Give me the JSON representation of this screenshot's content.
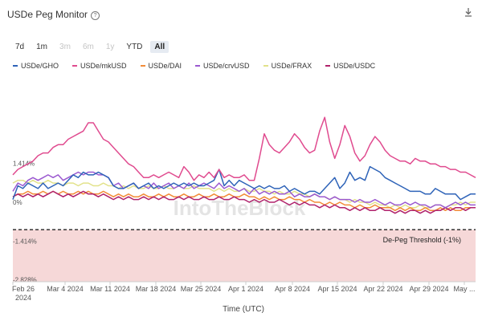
{
  "header": {
    "title": "USDe Peg Monitor",
    "info_icon": "info-icon",
    "download_icon": "download-icon"
  },
  "ranges": [
    {
      "label": "7d",
      "state": "enabled"
    },
    {
      "label": "1m",
      "state": "enabled"
    },
    {
      "label": "3m",
      "state": "disabled"
    },
    {
      "label": "6m",
      "state": "disabled"
    },
    {
      "label": "1y",
      "state": "disabled"
    },
    {
      "label": "YTD",
      "state": "enabled"
    },
    {
      "label": "All",
      "state": "active"
    }
  ],
  "watermark": "IntoTheBlock",
  "chart_data": {
    "type": "line",
    "title": "USDe Peg Monitor",
    "xlabel": "Time (UTC)",
    "ylabel": "",
    "ylim": [
      -2.9,
      4.6
    ],
    "y_ticks": [
      1.414,
      0,
      -1.414,
      -2.828
    ],
    "y_tick_labels": [
      "1.414%",
      "0%",
      "-1.414%",
      "-2.828%"
    ],
    "x_ticks": [
      "Feb 26 2024",
      "Mar 4 2024",
      "Mar 11 2024",
      "Mar 18 2024",
      "Mar 25 2024",
      "Apr 1 2024",
      "Apr 8 2024",
      "Apr 15 2024",
      "Apr 22 2024",
      "Apr 29 2024",
      "May ..."
    ],
    "threshold": {
      "value": -1.0,
      "label": "De-Peg Threshold (-1%)",
      "color": "#f6d8d8"
    },
    "series": [
      {
        "name": "USDe/GHO",
        "color": "#2e63b8",
        "values": [
          0.1,
          0.6,
          0.5,
          0.7,
          0.6,
          0.5,
          0.7,
          0.5,
          0.6,
          0.7,
          0.6,
          0.8,
          1.0,
          0.9,
          1.1,
          1.0,
          1.0,
          1.1,
          1.0,
          0.9,
          0.6,
          0.5,
          0.5,
          0.6,
          0.7,
          0.5,
          0.6,
          0.7,
          0.5,
          0.6,
          0.5,
          0.6,
          0.7,
          0.6,
          0.7,
          0.6,
          0.7,
          0.6,
          0.6,
          0.7,
          0.8,
          1.2,
          0.6,
          0.8,
          0.6,
          0.8,
          0.7,
          0.6,
          0.5,
          0.6,
          0.5,
          0.6,
          0.5,
          0.5,
          0.6,
          0.4,
          0.5,
          0.4,
          0.3,
          0.4,
          0.4,
          0.3,
          0.5,
          0.7,
          0.9,
          0.5,
          0.7,
          1.1,
          0.8,
          0.9,
          0.8,
          1.3,
          1.2,
          1.1,
          0.9,
          0.8,
          0.7,
          0.6,
          0.5,
          0.4,
          0.4,
          0.4,
          0.3,
          0.3,
          0.5,
          0.4,
          0.3,
          0.3,
          0.3,
          0.1,
          0.2,
          0.3,
          0.3
        ]
      },
      {
        "name": "USDe/mkUSD",
        "color": "#e04b8f",
        "values": [
          1.0,
          1.2,
          1.3,
          1.4,
          1.5,
          1.7,
          1.8,
          1.8,
          2.0,
          2.1,
          2.1,
          2.3,
          2.4,
          2.5,
          2.6,
          2.9,
          2.9,
          2.6,
          2.3,
          2.2,
          2.0,
          1.8,
          1.6,
          1.4,
          1.3,
          1.1,
          0.9,
          0.9,
          1.0,
          0.9,
          1.0,
          1.1,
          1.0,
          0.9,
          1.3,
          1.1,
          0.8,
          1.0,
          0.9,
          1.1,
          0.9,
          1.2,
          0.9,
          1.0,
          0.9,
          0.9,
          1.0,
          0.8,
          0.8,
          1.6,
          2.5,
          2.1,
          1.9,
          1.8,
          2.0,
          2.2,
          2.5,
          2.3,
          2.0,
          1.8,
          1.9,
          2.6,
          3.1,
          2.2,
          1.6,
          2.1,
          2.8,
          2.4,
          1.8,
          1.5,
          1.7,
          2.1,
          2.4,
          2.2,
          1.9,
          1.7,
          1.6,
          1.5,
          1.5,
          1.4,
          1.6,
          1.5,
          1.5,
          1.4,
          1.4,
          1.3,
          1.3,
          1.2,
          1.2,
          1.1,
          1.1,
          1.0,
          0.9
        ]
      },
      {
        "name": "USDe/DAI",
        "color": "#f28c38",
        "values": [
          0.2,
          0.3,
          0.3,
          0.4,
          0.3,
          0.3,
          0.4,
          0.3,
          0.4,
          0.3,
          0.4,
          0.3,
          0.3,
          0.4,
          0.3,
          0.4,
          0.3,
          0.3,
          0.4,
          0.3,
          0.2,
          0.3,
          0.2,
          0.3,
          0.2,
          0.2,
          0.3,
          0.2,
          0.2,
          0.3,
          0.2,
          0.3,
          0.2,
          0.2,
          0.3,
          0.2,
          0.2,
          0.3,
          0.2,
          0.2,
          0.3,
          0.2,
          0.2,
          0.3,
          0.2,
          0.2,
          0.3,
          0.2,
          0.2,
          0.1,
          0.2,
          0.1,
          0.2,
          0.1,
          0.1,
          0.2,
          0.1,
          0.1,
          0.0,
          0.1,
          0.0,
          0.0,
          -0.1,
          0.0,
          -0.1,
          0.0,
          -0.1,
          -0.1,
          -0.2,
          -0.1,
          -0.2,
          -0.2,
          -0.1,
          -0.2,
          -0.2,
          -0.2,
          -0.3,
          -0.2,
          -0.3,
          -0.2,
          -0.3,
          -0.3,
          -0.2,
          -0.3,
          -0.3,
          -0.2,
          -0.3,
          -0.2,
          -0.3,
          -0.3,
          -0.2,
          -0.2,
          -0.2
        ]
      },
      {
        "name": "USDe/crvUSD",
        "color": "#9b59d0",
        "values": [
          0.4,
          0.7,
          0.6,
          0.8,
          0.9,
          0.8,
          0.9,
          1.0,
          0.9,
          1.0,
          0.8,
          0.9,
          1.0,
          1.1,
          1.0,
          1.1,
          1.1,
          1.0,
          1.0,
          0.9,
          0.6,
          0.7,
          0.5,
          0.6,
          0.7,
          0.5,
          0.6,
          0.5,
          0.7,
          0.5,
          0.6,
          0.7,
          0.5,
          0.6,
          0.5,
          0.7,
          0.5,
          0.6,
          0.7,
          0.6,
          0.5,
          0.7,
          0.5,
          0.6,
          0.5,
          0.4,
          0.5,
          0.3,
          0.5,
          0.3,
          0.4,
          0.3,
          0.4,
          0.3,
          0.3,
          0.4,
          0.2,
          0.3,
          0.2,
          0.2,
          0.3,
          0.2,
          0.2,
          0.1,
          0.2,
          0.1,
          0.1,
          0.1,
          0.0,
          0.1,
          0.0,
          0.0,
          0.1,
          0.0,
          -0.1,
          0.0,
          -0.1,
          -0.1,
          0.0,
          -0.1,
          0.0,
          -0.1,
          -0.1,
          -0.2,
          -0.1,
          -0.1,
          -0.2,
          -0.1,
          0.0,
          -0.1,
          0.0,
          -0.1,
          -0.1
        ]
      },
      {
        "name": "USDe/FRAX",
        "color": "#e2e28a",
        "values": [
          0.7,
          0.8,
          0.8,
          0.7,
          0.8,
          0.7,
          0.7,
          0.8,
          0.7,
          0.7,
          0.6,
          0.7,
          0.7,
          0.6,
          0.7,
          0.7,
          0.6,
          0.6,
          0.7,
          0.6,
          0.6,
          0.5,
          0.6,
          0.5,
          0.6,
          0.5,
          0.5,
          0.6,
          0.5,
          0.5,
          0.6,
          0.5,
          0.5,
          0.6,
          0.5,
          0.5,
          0.6,
          0.5,
          0.5,
          0.5,
          0.4,
          0.5,
          0.4,
          0.5,
          0.4,
          0.4,
          0.5,
          0.4,
          0.4,
          0.5,
          0.4,
          0.4,
          0.3,
          0.4,
          0.3,
          0.3,
          0.4,
          0.3,
          0.3,
          0.2,
          0.3,
          0.2,
          0.2,
          0.1,
          0.2,
          0.1,
          0.1,
          0.0,
          0.1,
          0.0,
          0.0,
          -0.1,
          0.0,
          -0.1,
          -0.1,
          -0.2,
          -0.1,
          -0.2,
          -0.1,
          -0.2,
          -0.2,
          -0.1,
          -0.2,
          -0.2,
          -0.1,
          -0.1,
          -0.2,
          -0.1,
          -0.1,
          0.0,
          -0.1,
          0.0,
          0.0
        ]
      },
      {
        "name": "USDe/USDC",
        "color": "#b0226c",
        "values": [
          0.2,
          0.3,
          0.2,
          0.3,
          0.2,
          0.3,
          0.2,
          0.3,
          0.4,
          0.3,
          0.2,
          0.3,
          0.2,
          0.3,
          0.4,
          0.3,
          0.3,
          0.2,
          0.3,
          0.2,
          0.1,
          0.2,
          0.1,
          0.2,
          0.1,
          0.1,
          0.2,
          0.1,
          0.2,
          0.1,
          0.2,
          0.1,
          0.1,
          0.2,
          0.1,
          0.2,
          0.1,
          0.1,
          0.2,
          0.1,
          0.1,
          0.2,
          0.1,
          0.1,
          0.2,
          0.1,
          0.1,
          0.0,
          0.1,
          0.0,
          0.1,
          0.0,
          0.0,
          0.1,
          0.0,
          -0.1,
          0.0,
          -0.1,
          0.0,
          -0.1,
          -0.1,
          -0.2,
          -0.1,
          -0.2,
          -0.1,
          -0.2,
          -0.2,
          -0.3,
          -0.2,
          -0.3,
          -0.2,
          -0.3,
          -0.3,
          -0.2,
          -0.3,
          -0.3,
          -0.4,
          -0.3,
          -0.4,
          -0.3,
          -0.3,
          -0.4,
          -0.3,
          -0.4,
          -0.3,
          -0.3,
          -0.2,
          -0.3,
          -0.2,
          -0.2,
          -0.3,
          -0.2,
          -0.2
        ]
      }
    ]
  }
}
